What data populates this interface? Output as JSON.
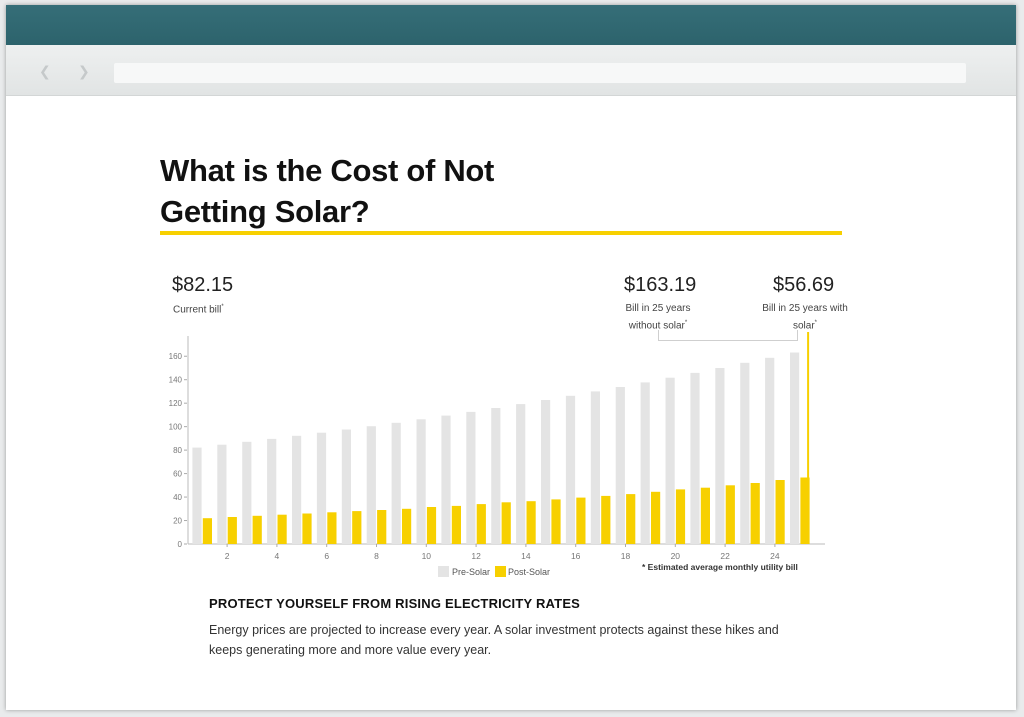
{
  "colors": {
    "titlebar": "#2f666f",
    "window_dots": [
      "#a3d36b",
      "#f2c84b",
      "#e0563f"
    ],
    "accent": "#f7d000",
    "pre_solar": "#e4e4e4",
    "post_solar": "#f7d000"
  },
  "icons": {
    "back": "chevron-left-icon",
    "forward": "chevron-right-icon"
  },
  "page": {
    "title_line1": "What is the Cost of Not",
    "title_line2": "Getting Solar?"
  },
  "stats": {
    "current": {
      "value": "$82.15",
      "label": "Current bill"
    },
    "without_solar": {
      "value": "$163.19",
      "label_line1": "Bill in 25 years",
      "label_line2": "without solar"
    },
    "with_solar": {
      "value": "$56.69",
      "label_line1": "Bill in 25 years with",
      "label_line2": "solar"
    }
  },
  "chart_data": {
    "type": "bar",
    "x": [
      1,
      2,
      3,
      4,
      5,
      6,
      7,
      8,
      9,
      10,
      11,
      12,
      13,
      14,
      15,
      16,
      17,
      18,
      19,
      20,
      21,
      22,
      23,
      24,
      25
    ],
    "x_ticks": [
      "2",
      "4",
      "6",
      "8",
      "10",
      "12",
      "14",
      "16",
      "18",
      "20",
      "22",
      "24"
    ],
    "y_ticks": [
      "0",
      "20",
      "40",
      "60",
      "80",
      "100",
      "120",
      "140",
      "160"
    ],
    "ylim": [
      0,
      170
    ],
    "grid": false,
    "legend_position": "bottom",
    "series": [
      {
        "name": "Pre-Solar",
        "color": "#e4e4e4",
        "values": [
          82.15,
          84.6,
          87.1,
          89.6,
          92.2,
          94.8,
          97.6,
          100.4,
          103.3,
          106.3,
          109.4,
          112.6,
          115.9,
          119.2,
          122.7,
          126.3,
          130.0,
          133.8,
          137.7,
          141.7,
          145.8,
          150.0,
          154.4,
          158.7,
          163.19
        ]
      },
      {
        "name": "Post-Solar",
        "color": "#f7d000",
        "values": [
          22.0,
          23.0,
          24.0,
          25.0,
          26.0,
          27.0,
          28.0,
          29.0,
          30.0,
          31.5,
          32.5,
          34.0,
          35.5,
          36.5,
          38.0,
          39.5,
          41.0,
          42.5,
          44.5,
          46.5,
          48.0,
          50.0,
          52.0,
          54.5,
          56.69
        ]
      }
    ],
    "footnote": "* Estimated average monthly utility bill"
  },
  "section": {
    "heading": "PROTECT YOURSELF FROM RISING ELECTRICITY RATES",
    "body": "Energy prices are projected to increase every year. A solar investment protects against these hikes and keeps generating more and more value every year."
  }
}
